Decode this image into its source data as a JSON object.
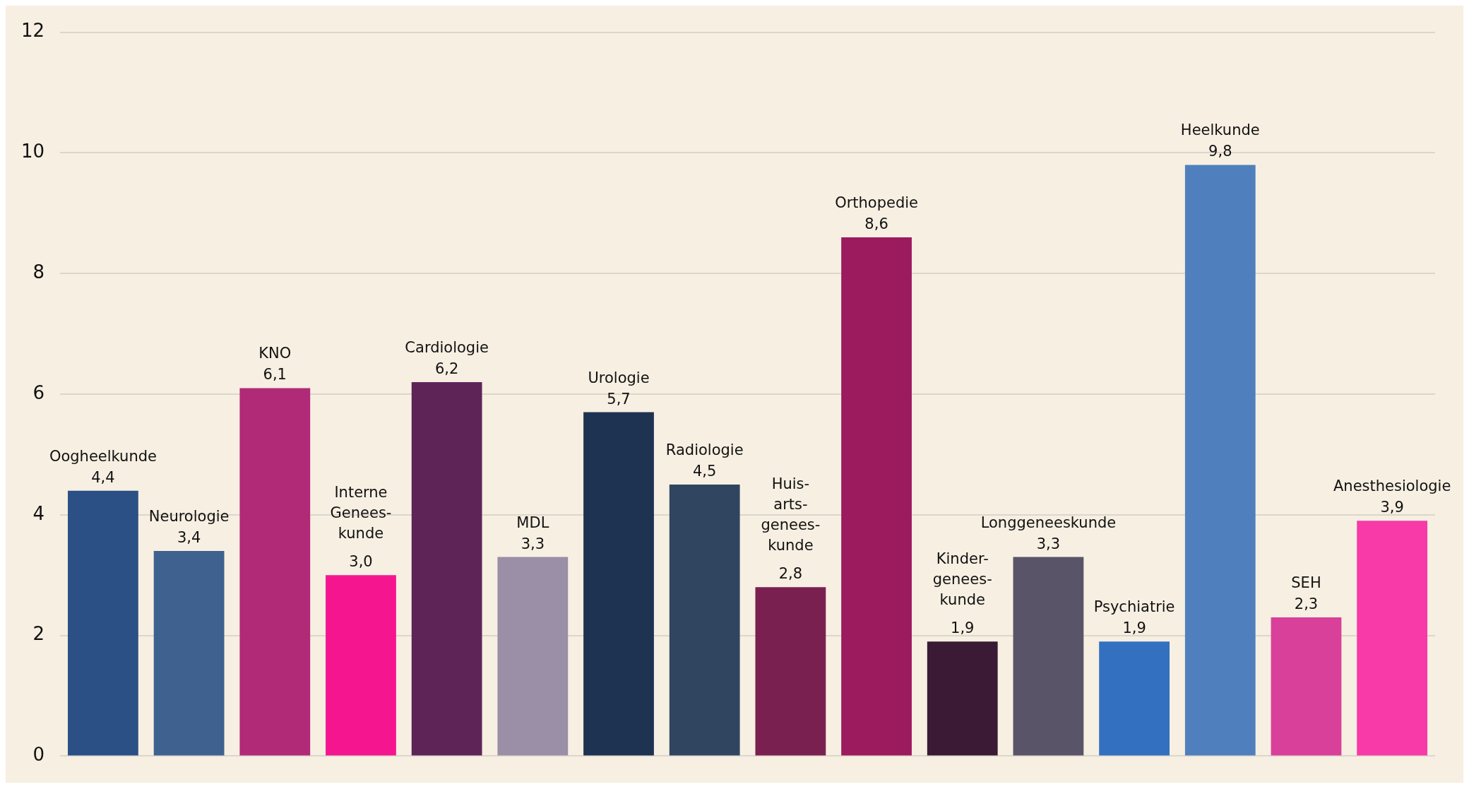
{
  "chart_data": {
    "type": "bar",
    "categories": [
      "Oogheelkunde",
      "Neurologie",
      "KNO",
      "Interne Genees- kunde",
      "Cardiologie",
      "MDL",
      "Urologie",
      "Radiologie",
      "Huis- arts- genees- kunde",
      "Orthopedie",
      "Kinder- genees- kunde",
      "Longgeneeskunde",
      "Psychiatrie",
      "Heelkunde",
      "SEH",
      "Anesthesiologie"
    ],
    "values": [
      4.4,
      3.4,
      6.1,
      3.0,
      6.2,
      3.3,
      5.7,
      4.5,
      2.8,
      8.6,
      1.9,
      3.3,
      1.9,
      9.8,
      2.3,
      3.9
    ],
    "value_labels": [
      "4,4",
      "3,4",
      "6,1",
      "3,0",
      "6,2",
      "3,3",
      "5,7",
      "4,5",
      "2,8",
      "8,6",
      "1,9",
      "3,3",
      "1,9",
      "9,8",
      "2,3",
      "3,9"
    ],
    "colors": [
      "#2a5085",
      "#3e6190",
      "#b02a78",
      "#f5168f",
      "#5e2458",
      "#9a8fa6",
      "#1e3352",
      "#2f4560",
      "#7a2050",
      "#9c1a5e",
      "#3a1a35",
      "#5a5468",
      "#3370c0",
      "#4f80bd",
      "#d8409a",
      "#f83aa8"
    ],
    "ylim": [
      0,
      12
    ],
    "yticks": [
      0,
      2,
      4,
      6,
      8,
      10,
      12
    ],
    "grid": "y",
    "legend": false,
    "tick_labels": "y"
  }
}
